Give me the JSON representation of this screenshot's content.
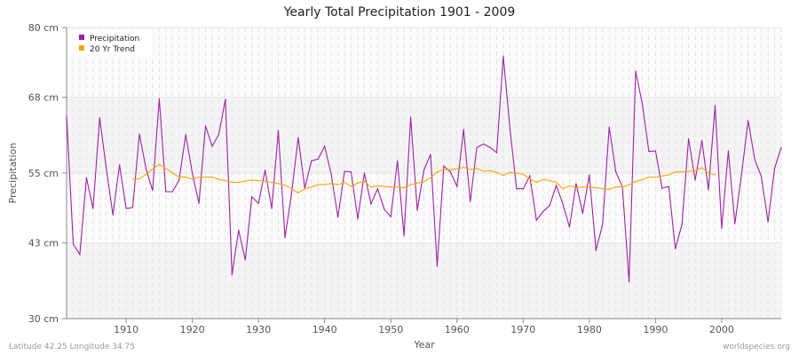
{
  "chart_data": {
    "type": "line",
    "title": "Yearly Total Precipitation 1901 - 2009",
    "xlabel": "Year",
    "ylabel": "Precipitation",
    "xlim": [
      1901,
      2009
    ],
    "ylim": [
      30,
      80
    ],
    "x_ticks": [
      1910,
      1920,
      1930,
      1940,
      1950,
      1960,
      1970,
      1980,
      1990,
      2000
    ],
    "y_ticks": [
      {
        "value": 30,
        "label": "30 cm"
      },
      {
        "value": 43,
        "label": "43 cm"
      },
      {
        "value": 55,
        "label": "55 cm"
      },
      {
        "value": 68,
        "label": "68 cm"
      },
      {
        "value": 80,
        "label": "80 cm"
      }
    ],
    "grid": true,
    "legend_position": "top-left",
    "series": [
      {
        "name": "Precipitation",
        "color": "#a020a8",
        "x_start": 1901,
        "values": [
          64.9,
          42.8,
          41.0,
          54.2,
          48.9,
          64.5,
          55.8,
          47.8,
          56.4,
          48.9,
          49.1,
          61.7,
          55.8,
          52.0,
          67.8,
          51.8,
          51.8,
          53.8,
          61.6,
          55.0,
          49.8,
          63.1,
          59.6,
          61.6,
          67.7,
          37.5,
          45.2,
          40.1,
          50.9,
          49.8,
          55.5,
          48.9,
          62.3,
          43.9,
          51.5,
          61.1,
          52.4,
          57.1,
          57.4,
          59.6,
          54.8,
          47.4,
          55.3,
          55.2,
          47.1,
          55.0,
          49.7,
          52.3,
          48.8,
          47.5,
          57.1,
          44.2,
          64.6,
          48.6,
          55.5,
          58.2,
          39.0,
          56.2,
          55.2,
          52.7,
          62.5,
          50.1,
          59.4,
          60.0,
          59.4,
          58.5,
          75.1,
          62.6,
          52.3,
          52.3,
          54.5,
          46.9,
          48.4,
          49.4,
          52.9,
          49.7,
          45.7,
          53.2,
          48.1,
          54.7,
          41.7,
          46.2,
          62.9,
          55.2,
          52.6,
          36.3,
          72.5,
          66.9,
          58.7,
          58.8,
          52.4,
          52.7,
          42.0,
          46.2,
          60.9,
          53.8,
          60.6,
          52.1,
          66.6,
          45.5,
          58.8,
          46.3,
          54.8,
          64.0,
          57.3,
          54.4,
          46.6,
          55.8,
          59.4
        ]
      },
      {
        "name": "20 Yr Trend",
        "color": "#ffa500",
        "x_start": 1911,
        "values": [
          54.0,
          54.0,
          54.8,
          55.7,
          56.5,
          55.8,
          55.0,
          54.3,
          54.3,
          54.0,
          54.3,
          54.3,
          54.3,
          53.9,
          53.7,
          53.4,
          53.4,
          53.6,
          53.8,
          53.7,
          53.6,
          53.4,
          53.2,
          52.9,
          52.3,
          51.6,
          52.3,
          52.6,
          53.0,
          53.0,
          53.2,
          53.0,
          53.4,
          52.7,
          53.3,
          53.6,
          52.6,
          52.8,
          52.7,
          52.6,
          52.6,
          52.5,
          53.0,
          53.3,
          53.5,
          54.2,
          55.2,
          55.6,
          55.6,
          55.7,
          56.0,
          55.6,
          55.8,
          55.3,
          55.4,
          55.1,
          54.6,
          55.1,
          55.0,
          54.8,
          54.0,
          53.4,
          53.9,
          53.7,
          53.4,
          52.3,
          52.8,
          52.5,
          52.6,
          52.6,
          52.5,
          52.3,
          52.2,
          52.6,
          52.6,
          53.0,
          53.5,
          53.9,
          54.3,
          54.3,
          54.5,
          54.7,
          55.2,
          55.2,
          55.3,
          55.4,
          55.9,
          55.0,
          54.7
        ]
      }
    ]
  },
  "footer": {
    "location": "Latitude 42.25 Longitude 34.75",
    "source": "worldspecies.org"
  }
}
